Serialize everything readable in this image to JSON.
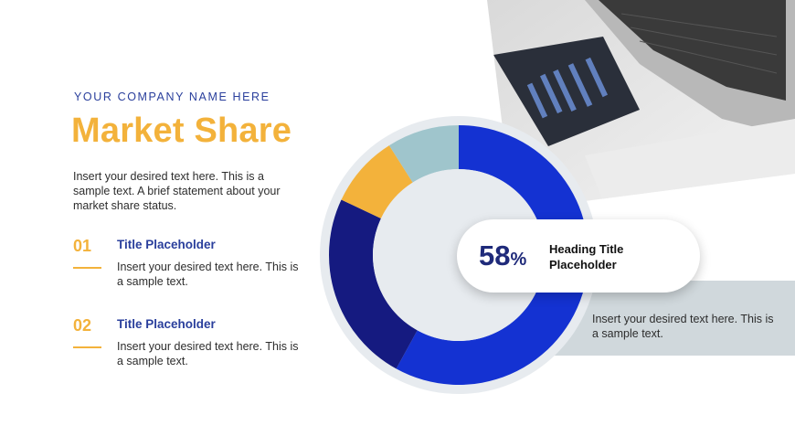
{
  "header": {
    "company": "YOUR COMPANY NAME HERE",
    "title": "Market Share",
    "intro": "Insert your desired text here. This is a sample text. A brief statement about your market share status."
  },
  "items": [
    {
      "number": "01",
      "title": "Title Placeholder",
      "text": "Insert your desired text here. This is a sample text."
    },
    {
      "number": "02",
      "title": "Title Placeholder",
      "text": "Insert your desired text here. This is a sample text."
    }
  ],
  "callout": {
    "value": "58",
    "unit": "%",
    "title": "Heading Title Placeholder"
  },
  "panel": {
    "text": "Insert your desired text here. This is a sample text."
  },
  "colors": {
    "accent": "#f3b23b",
    "primary_blue": "#1432d2",
    "navy": "#151a80",
    "teal": "#9fc5cc",
    "panel": "#d0d8dc"
  },
  "chart_data": {
    "type": "pie",
    "subtype": "donut",
    "categories": [
      "",
      "",
      "",
      ""
    ],
    "values": [
      58,
      24,
      9,
      9
    ],
    "colors": [
      "#1432d2",
      "#151a80",
      "#f3b23b",
      "#9fc5cc"
    ],
    "title": ""
  }
}
